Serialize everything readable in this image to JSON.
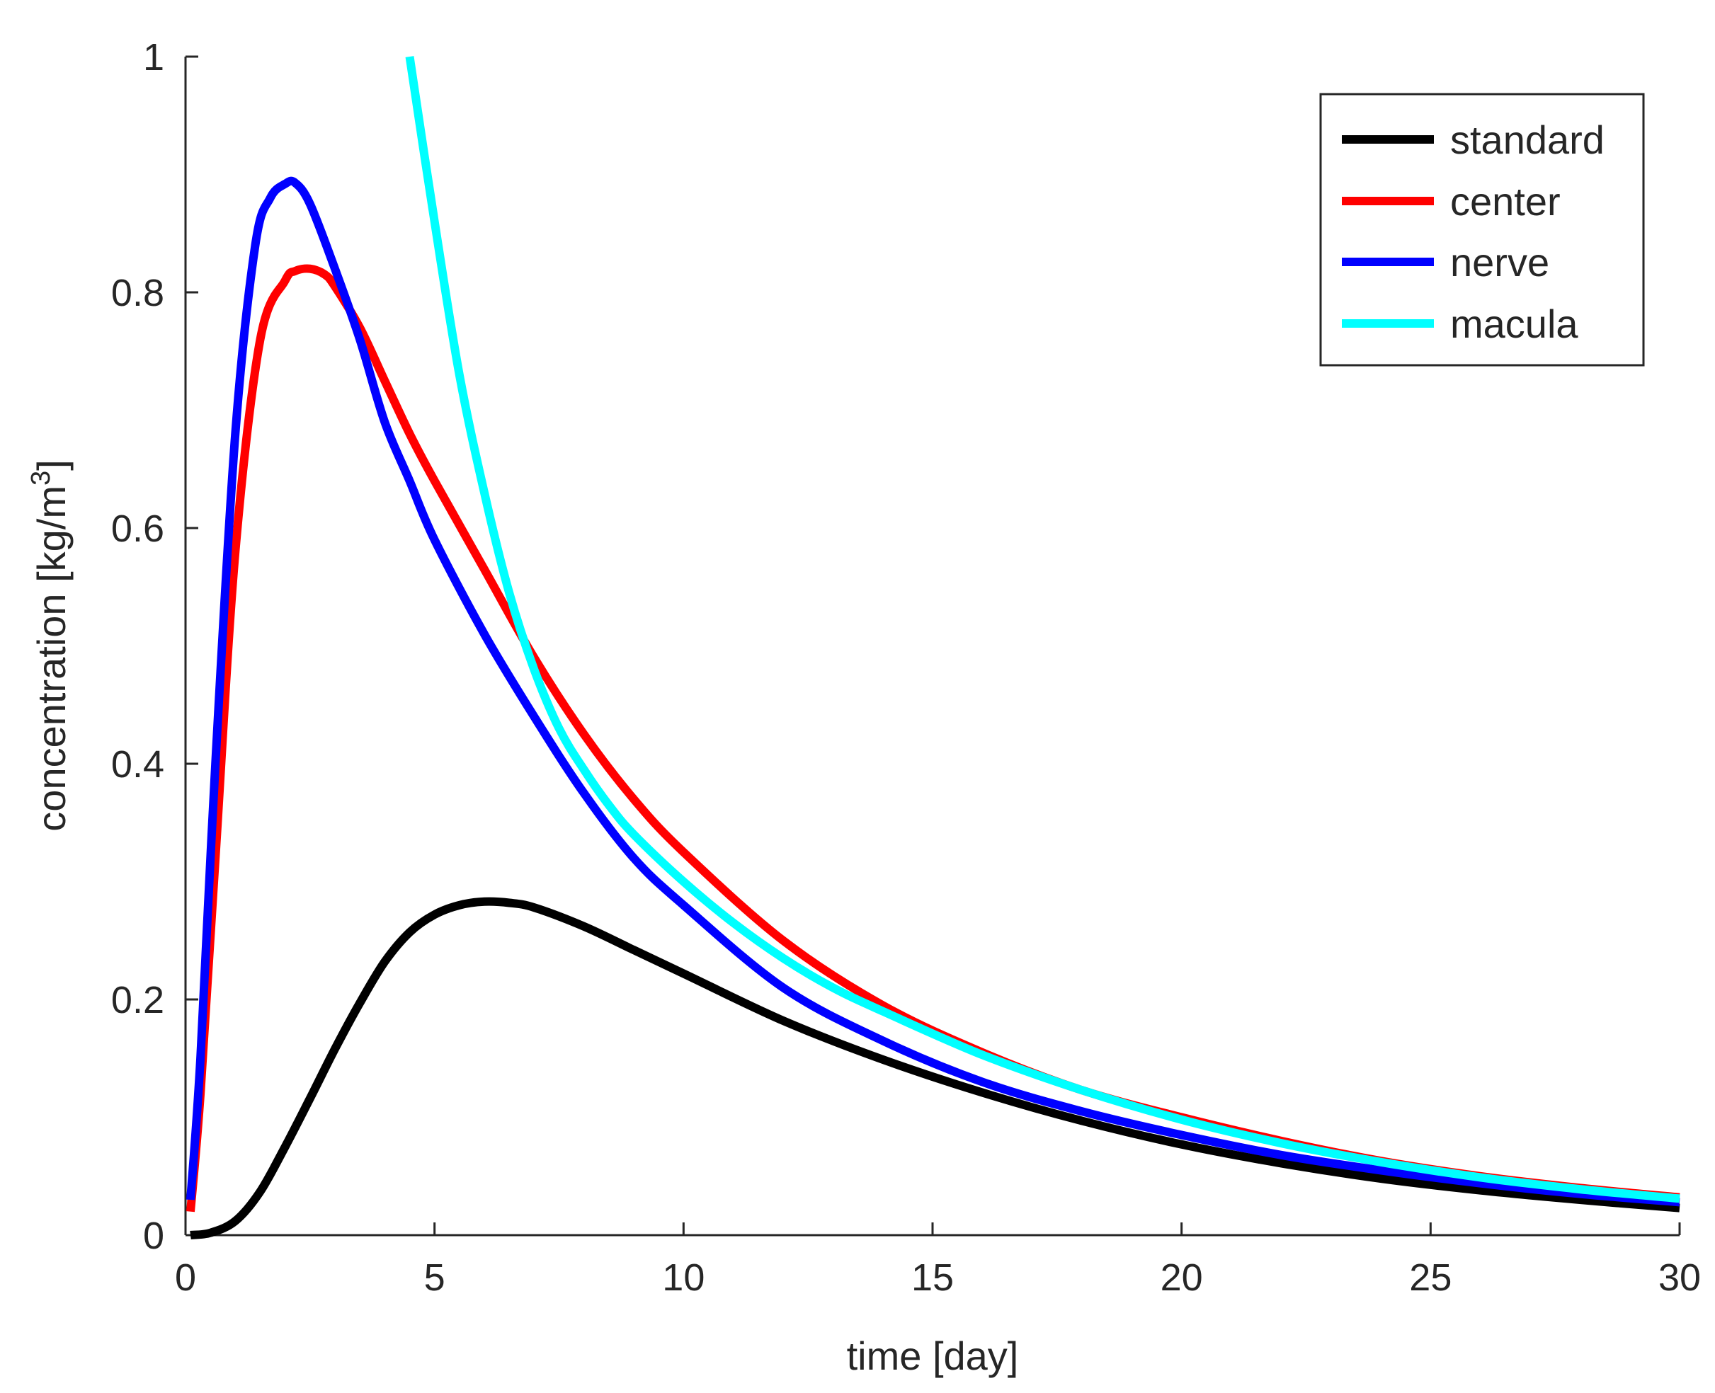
{
  "chart_data": {
    "type": "line",
    "title": "",
    "xlabel": "time [day]",
    "ylabel_main": "concentration [kg/m",
    "ylabel_sup": "3",
    "ylabel_close": "]",
    "xlim": [
      0,
      30
    ],
    "ylim": [
      0,
      1
    ],
    "x_ticks": [
      0,
      5,
      10,
      15,
      20,
      25,
      30
    ],
    "x_tick_labels": [
      "0",
      "5",
      "10",
      "15",
      "20",
      "25",
      "30"
    ],
    "y_ticks": [
      0,
      0.2,
      0.4,
      0.6,
      0.8,
      1
    ],
    "y_tick_labels": [
      "0",
      "0.2",
      "0.4",
      "0.6",
      "0.8",
      "1"
    ],
    "grid": false,
    "legend_position": "top-right",
    "series": [
      {
        "name": "standard",
        "color": "#000000",
        "x": [
          0.1,
          0.5,
          1,
          1.5,
          2,
          2.5,
          3,
          3.5,
          4,
          4.5,
          5,
          5.5,
          6,
          6.5,
          7,
          8,
          9,
          10,
          12,
          14,
          16,
          18,
          20,
          22,
          24,
          26,
          28,
          30
        ],
        "y": [
          0.0,
          0.002,
          0.012,
          0.037,
          0.075,
          0.116,
          0.158,
          0.197,
          0.232,
          0.257,
          0.272,
          0.28,
          0.283,
          0.282,
          0.278,
          0.262,
          0.242,
          0.222,
          0.182,
          0.149,
          0.121,
          0.097,
          0.077,
          0.061,
          0.048,
          0.038,
          0.03,
          0.023
        ]
      },
      {
        "name": "center",
        "color": "#ff0000",
        "x": [
          0.1,
          0.3,
          0.6,
          1,
          1.5,
          2,
          2.2,
          2.5,
          2.8,
          3,
          3.5,
          4,
          4.5,
          5,
          6,
          7,
          8,
          9,
          10,
          12,
          14,
          16,
          18,
          20,
          22,
          24,
          26,
          28,
          30
        ],
        "y": [
          0.02,
          0.12,
          0.32,
          0.58,
          0.76,
          0.81,
          0.818,
          0.82,
          0.815,
          0.805,
          0.77,
          0.725,
          0.68,
          0.64,
          0.565,
          0.49,
          0.425,
          0.37,
          0.325,
          0.25,
          0.195,
          0.155,
          0.123,
          0.1,
          0.08,
          0.063,
          0.05,
          0.04,
          0.032
        ]
      },
      {
        "name": "nerve",
        "color": "#0000ff",
        "x": [
          0.1,
          0.3,
          0.6,
          1,
          1.4,
          1.7,
          2,
          2.2,
          2.5,
          3,
          3.5,
          4,
          4.5,
          5,
          6,
          7,
          8,
          9,
          10,
          12,
          14,
          16,
          18,
          20,
          22,
          24,
          26,
          28,
          30
        ],
        "y": [
          0.03,
          0.15,
          0.4,
          0.68,
          0.84,
          0.88,
          0.892,
          0.893,
          0.875,
          0.82,
          0.76,
          0.69,
          0.64,
          0.59,
          0.51,
          0.44,
          0.375,
          0.32,
          0.28,
          0.21,
          0.165,
          0.13,
          0.105,
          0.085,
          0.068,
          0.055,
          0.044,
          0.035,
          0.028
        ]
      },
      {
        "name": "macula",
        "color": "#00ffff",
        "x": [
          4.5,
          5,
          5.5,
          6,
          6.5,
          7,
          7.5,
          8,
          8.5,
          9,
          10,
          11,
          12,
          13,
          14,
          16,
          18,
          20,
          22,
          24,
          26,
          28,
          30
        ],
        "y": [
          1.0,
          0.86,
          0.73,
          0.63,
          0.545,
          0.48,
          0.43,
          0.395,
          0.365,
          0.34,
          0.3,
          0.265,
          0.235,
          0.21,
          0.19,
          0.153,
          0.123,
          0.098,
          0.078,
          0.062,
          0.049,
          0.039,
          0.031
        ]
      }
    ]
  }
}
